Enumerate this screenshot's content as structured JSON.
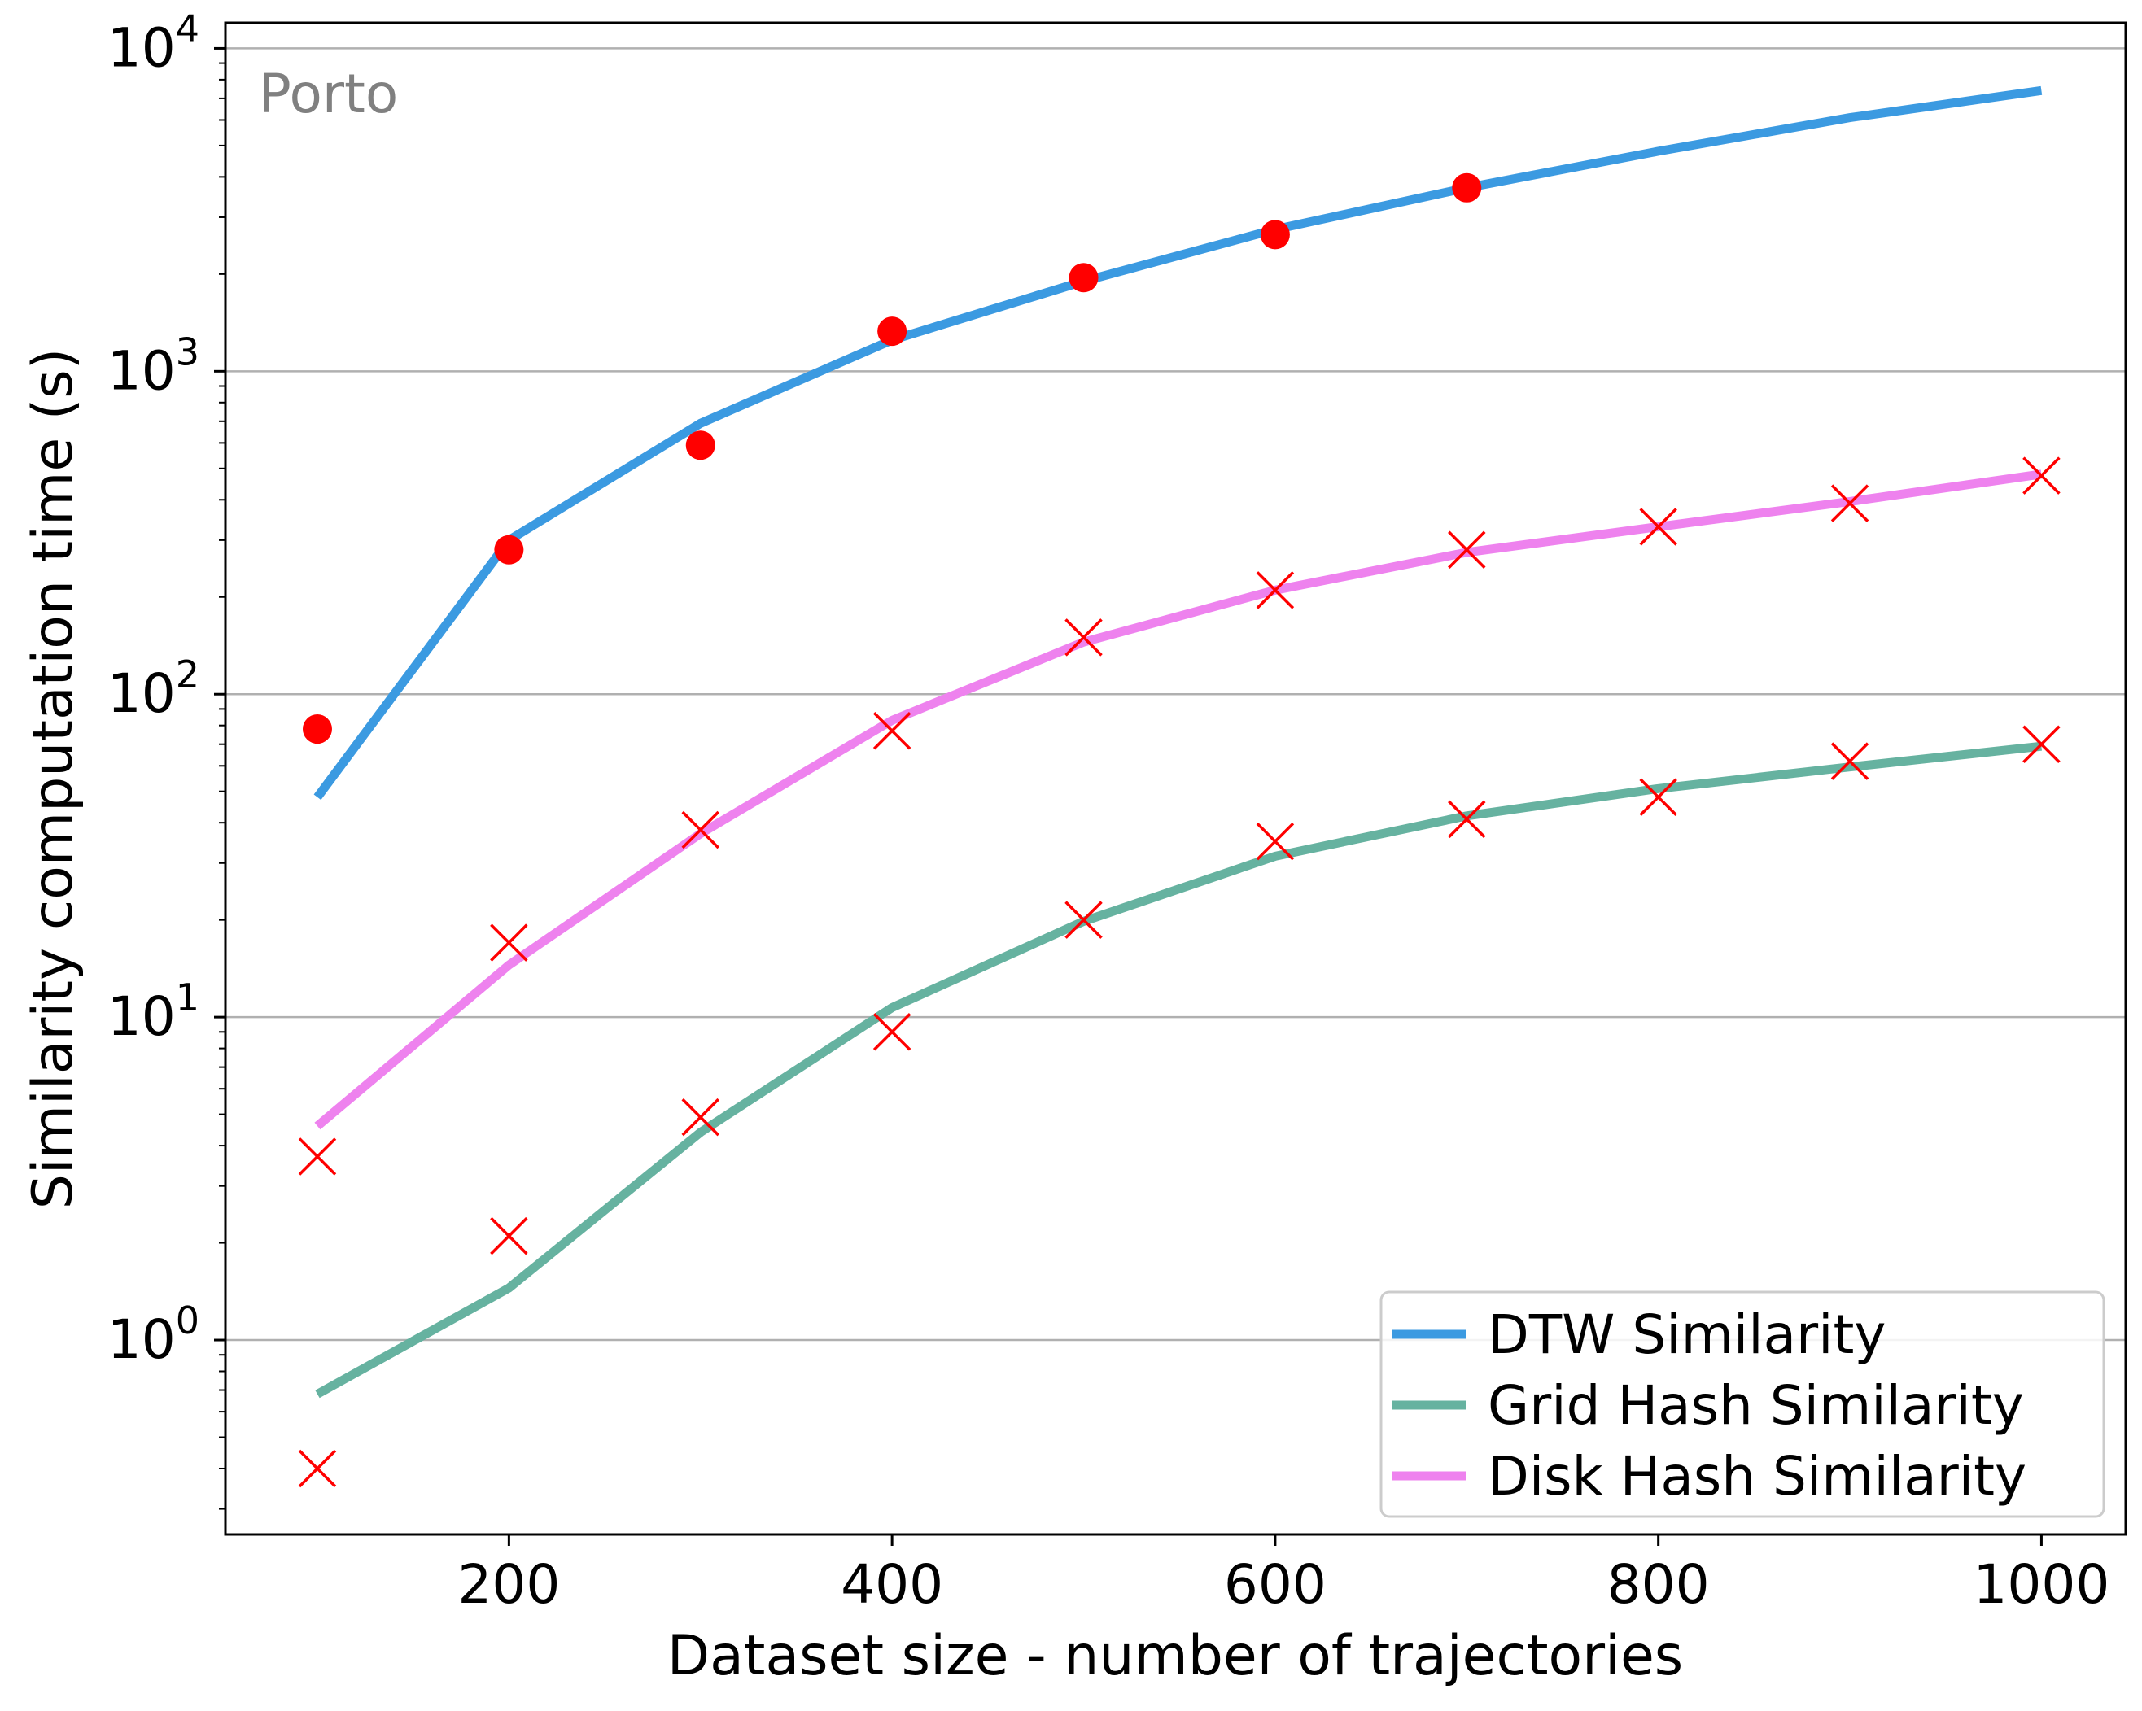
{
  "chart_data": {
    "type": "line",
    "annotation": "Porto",
    "xlabel": "Dataset size - number of trajectories",
    "ylabel": "Similarity computation time (s)",
    "yscale": "log",
    "xlim": [
      52,
      1044
    ],
    "ylim": [
      0.25,
      12000
    ],
    "x_ticks": [
      200,
      400,
      600,
      800,
      1000
    ],
    "y_ticks": [
      {
        "value": 1,
        "base": "10",
        "exp": "0"
      },
      {
        "value": 10,
        "base": "10",
        "exp": "1"
      },
      {
        "value": 100,
        "base": "10",
        "exp": "2"
      },
      {
        "value": 1000,
        "base": "10",
        "exp": "3"
      },
      {
        "value": 10000,
        "base": "10",
        "exp": "4"
      }
    ],
    "grid": "horizontal",
    "legend_position": "bottom-right",
    "series": [
      {
        "name": "DTW Similarity",
        "color": "#3b9ae1",
        "x": [
          100,
          200,
          300,
          400,
          500,
          600,
          700,
          800,
          900,
          1000
        ],
        "values": [
          48,
          300,
          690,
          1250,
          1900,
          2750,
          3700,
          4800,
          6100,
          7400
        ]
      },
      {
        "name": "Grid Hash Similarity",
        "color": "#66b2a0",
        "x": [
          100,
          200,
          300,
          400,
          500,
          600,
          700,
          800,
          900,
          1000
        ],
        "values": [
          0.68,
          1.45,
          4.4,
          10.7,
          19.8,
          31.5,
          42,
          51,
          59.5,
          69
        ]
      },
      {
        "name": "Disk Hash Similarity",
        "color": "#ee82ee",
        "x": [
          100,
          200,
          300,
          400,
          500,
          600,
          700,
          800,
          900,
          1000
        ],
        "values": [
          4.6,
          14.5,
          37,
          83,
          145,
          210,
          275,
          330,
          395,
          480
        ]
      }
    ],
    "scatter": [
      {
        "marker": "circle",
        "color": "#ff0000",
        "x": [
          100,
          200,
          300,
          400,
          500,
          600,
          700
        ],
        "values": [
          78,
          280,
          590,
          1330,
          1950,
          2650,
          3700
        ]
      },
      {
        "marker": "x",
        "color": "#ff0000",
        "x": [
          100,
          200,
          300,
          400,
          500,
          600,
          700,
          800,
          900,
          1000
        ],
        "values": [
          3.7,
          17,
          38,
          77,
          150,
          210,
          280,
          330,
          390,
          475
        ]
      },
      {
        "marker": "x",
        "color": "#ff0000",
        "x": [
          100,
          200,
          300,
          400,
          500,
          600,
          700,
          800,
          900,
          1000
        ],
        "values": [
          0.4,
          2.1,
          4.9,
          9,
          20,
          35,
          41,
          48,
          62,
          70
        ]
      }
    ]
  }
}
